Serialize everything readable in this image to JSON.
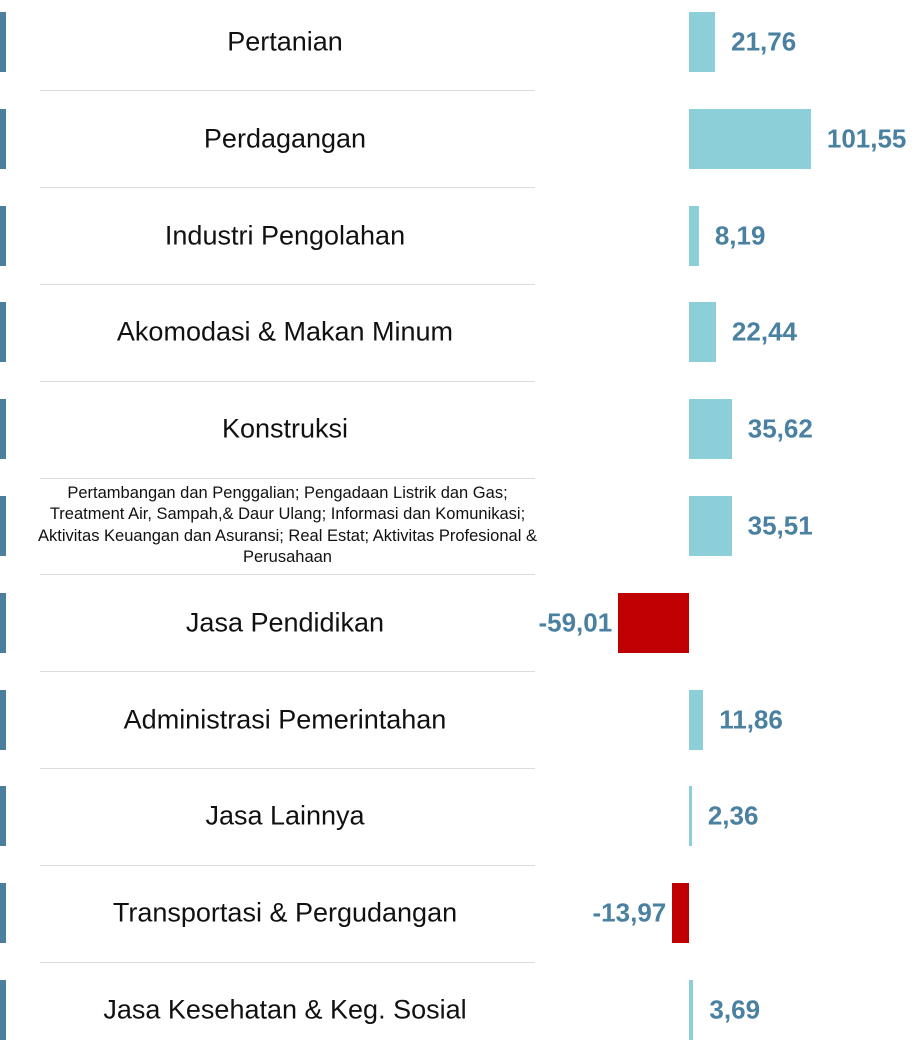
{
  "chart_data": {
    "type": "bar",
    "orientation": "horizontal",
    "categories": [
      "Pertanian",
      "Perdagangan",
      "Industri Pengolahan",
      "Akomodasi & Makan Minum",
      "Konstruksi",
      "Pertambangan dan Penggalian; Pengadaan Listrik dan Gas; Treatment Air, Sampah,& Daur Ulang; Informasi dan Komunikasi; Aktivitas Keuangan dan Asuransi; Real Estat; Aktivitas Profesional & Perusahaan",
      "Jasa Pendidikan",
      "Administrasi Pemerintahan",
      "Jasa Lainnya",
      "Transportasi & Pergudangan",
      "Jasa Kesehatan & Keg. Sosial"
    ],
    "values": [
      21.76,
      101.55,
      8.19,
      22.44,
      35.62,
      35.51,
      -59.01,
      11.86,
      2.36,
      -13.97,
      3.69
    ],
    "value_labels": [
      "21,76",
      "101,55",
      "8,19",
      "22,44",
      "35,62",
      "35,51",
      "-59,01",
      "11,86",
      "2,36",
      "-13,97",
      "3,69"
    ],
    "positive_color": "#8dcfd9",
    "negative_color": "#c00000"
  }
}
